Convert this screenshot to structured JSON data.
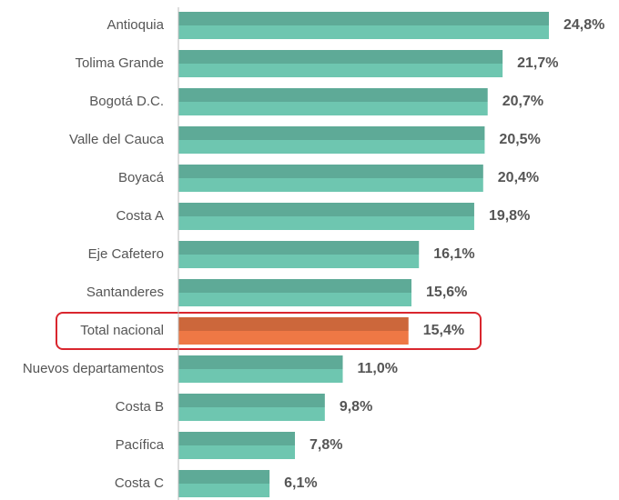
{
  "chart_data": {
    "type": "bar",
    "orientation": "horizontal",
    "categories": [
      "Antioquia",
      "Tolima Grande",
      "Bogotá D.C.",
      "Valle del Cauca",
      "Boyacá",
      "Costa A",
      "Eje Cafetero",
      "Santanderes",
      "Total nacional",
      "Nuevos departamentos",
      "Costa B",
      "Pacífica",
      "Costa C"
    ],
    "values": [
      24.8,
      21.7,
      20.7,
      20.5,
      20.4,
      19.8,
      16.1,
      15.6,
      15.4,
      11.0,
      9.8,
      7.8,
      6.1
    ],
    "value_labels": [
      "24,8%",
      "21,7%",
      "20,7%",
      "20,5%",
      "20,4%",
      "19,8%",
      "16,1%",
      "15,6%",
      "15,4%",
      "11,0%",
      "9,8%",
      "7,8%",
      "6,1%"
    ],
    "colors": [
      "#6ec6b0",
      "#6ec6b0",
      "#6ec6b0",
      "#6ec6b0",
      "#6ec6b0",
      "#6ec6b0",
      "#6ec6b0",
      "#6ec6b0",
      "#ee7845",
      "#6ec6b0",
      "#6ec6b0",
      "#6ec6b0",
      "#6ec6b0"
    ],
    "highlighted": [
      "Total nacional"
    ],
    "highlight_color": "#d9262e"
  }
}
